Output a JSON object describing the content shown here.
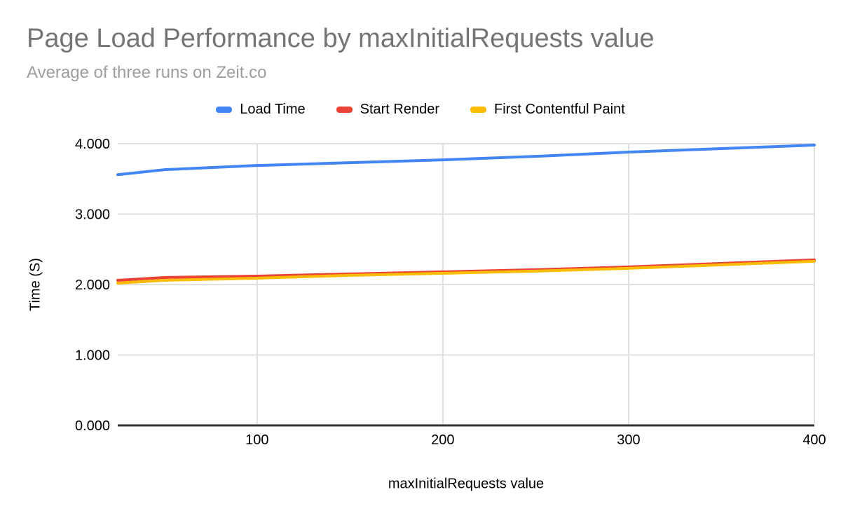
{
  "colors": {
    "blue": "#4285F4",
    "red": "#EA4335",
    "yellow": "#FBBC04",
    "grid": "#E0E0E0",
    "axis": "#333333",
    "title_gray": "#757575",
    "subtitle_gray": "#9E9E9E",
    "tick_text": "#000000"
  },
  "chart_data": {
    "type": "line",
    "title": "Page Load Performance by maxInitialRequests value",
    "subtitle": "Average of three runs on Zeit.co",
    "xlabel": "maxInitialRequests value",
    "ylabel": "Time (S)",
    "legend_position": "top",
    "grid": true,
    "xlim": [
      25,
      400
    ],
    "ylim": [
      0,
      4
    ],
    "x_ticks": [
      100,
      200,
      300,
      400
    ],
    "y_ticks": [
      0,
      1,
      2,
      3,
      4
    ],
    "y_tick_labels": [
      "0.000",
      "1.000",
      "2.000",
      "3.000",
      "4.000"
    ],
    "x": [
      25,
      50,
      100,
      150,
      200,
      250,
      300,
      350,
      400
    ],
    "series": [
      {
        "name": "Load Time",
        "color": "#4285F4",
        "values": [
          3.56,
          3.63,
          3.69,
          3.73,
          3.77,
          3.82,
          3.88,
          3.93,
          3.98
        ]
      },
      {
        "name": "Start Render",
        "color": "#EA4335",
        "values": [
          2.06,
          2.1,
          2.12,
          2.15,
          2.18,
          2.21,
          2.25,
          2.3,
          2.35
        ]
      },
      {
        "name": "First Contentful Paint",
        "color": "#FBBC04",
        "values": [
          2.02,
          2.06,
          2.09,
          2.13,
          2.16,
          2.19,
          2.23,
          2.28,
          2.33
        ]
      }
    ]
  }
}
